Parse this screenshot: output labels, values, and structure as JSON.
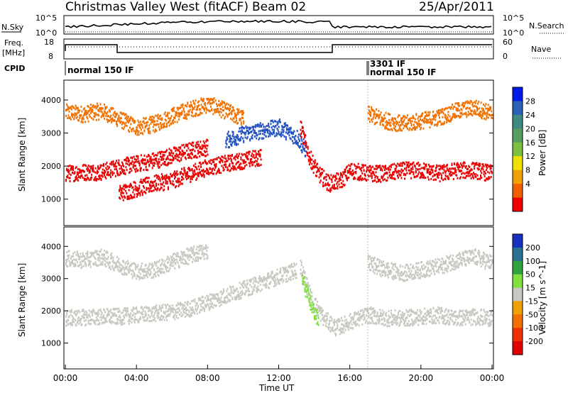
{
  "header": {
    "station": "Christmas Valley West (fitACF)",
    "beam": "Beam 02",
    "date": "25/Apr/2011"
  },
  "nsky_panel": {
    "left_label": "N.Sky",
    "right_label": "N.Search",
    "left_ticks": [
      "10^5",
      "10^0"
    ],
    "right_ticks": [
      "10^5",
      "10^0"
    ]
  },
  "freq_panel": {
    "left_label_1": "Freq.",
    "left_label_2": "[MHz]",
    "right_label": "Nave",
    "left_ticks": [
      "18",
      "8"
    ],
    "right_ticks": [
      "60",
      "0"
    ]
  },
  "cpid_panel": {
    "label": "CPID",
    "segments": [
      "normal 150 IF",
      "3301 IF",
      "normal 150 IF"
    ]
  },
  "chart_data": [
    {
      "type": "heatmap",
      "name": "power",
      "xlabel": "",
      "ylabel": "Slant Range [km]",
      "xlim": [
        0,
        24
      ],
      "ylim": [
        200,
        4600
      ],
      "y_ticks": [
        1000,
        2000,
        3000,
        4000
      ],
      "colorbar_label": "Power [dB]",
      "colorbar_ticks": [
        4,
        8,
        12,
        16,
        20,
        24,
        28
      ],
      "colorbar_colors": [
        "#0018e8",
        "#2a60b8",
        "#3f8a80",
        "#55a060",
        "#80c040",
        "#f0e000",
        "#f0a000",
        "#f06000",
        "#f00000"
      ],
      "bands": [
        {
          "t": [
            0,
            1,
            2,
            3,
            4,
            5,
            6,
            7,
            8,
            9,
            10
          ],
          "r": [
            3650,
            3600,
            3700,
            3450,
            3200,
            3300,
            3550,
            3750,
            3900,
            3700,
            3450
          ],
          "color": "#f07000"
        },
        {
          "t": [
            0,
            1,
            2,
            3,
            4,
            5,
            6,
            7,
            8
          ],
          "r": [
            1800,
            1850,
            1850,
            2000,
            2100,
            2200,
            2350,
            2500,
            2600
          ],
          "color": "#e80000"
        },
        {
          "t": [
            3,
            4,
            5,
            6,
            7,
            8,
            9,
            10,
            11
          ],
          "r": [
            1200,
            1350,
            1500,
            1600,
            1800,
            2000,
            2100,
            2200,
            2300
          ],
          "color": "#e80000"
        },
        {
          "t": [
            9,
            10,
            11,
            12,
            13,
            13.5
          ],
          "r": [
            2800,
            3000,
            3100,
            3200,
            2900,
            2500
          ],
          "color": "#2050c0"
        },
        {
          "t": [
            13.2,
            13.7,
            14.2,
            14.8,
            15.5,
            16,
            17,
            18,
            19,
            20,
            21,
            22,
            23,
            24
          ],
          "r": [
            3200,
            2300,
            1800,
            1500,
            1600,
            1900,
            1800,
            1800,
            1900,
            1900,
            1800,
            1900,
            1900,
            1800
          ],
          "color": "#e80000"
        },
        {
          "t": [
            17,
            18,
            19,
            20,
            21,
            22,
            23,
            24
          ],
          "r": [
            3600,
            3400,
            3300,
            3400,
            3500,
            3700,
            3800,
            3600
          ],
          "color": "#f07000"
        }
      ]
    },
    {
      "type": "heatmap",
      "name": "velocity",
      "xlabel": "Time UT",
      "ylabel": "Slant Range [km]",
      "xlim": [
        0,
        24
      ],
      "ylim": [
        200,
        4600
      ],
      "x_ticks": [
        "00:00",
        "04:00",
        "08:00",
        "12:00",
        "16:00",
        "20:00",
        "00:00"
      ],
      "y_ticks": [
        1000,
        2000,
        3000,
        4000
      ],
      "colorbar_label": "Velocity [m s^-1]",
      "colorbar_ticks": [
        200,
        100,
        50,
        15,
        -15,
        -50,
        -100,
        -200
      ],
      "colorbar_colors": [
        "#1830c0",
        "#2a7090",
        "#30a040",
        "#80e040",
        "#c8c8c0",
        "#f0a000",
        "#f07000",
        "#f03000",
        "#e00000"
      ],
      "bands": [
        {
          "t": [
            0,
            2,
            3,
            4,
            5,
            6,
            7,
            8,
            9,
            10,
            11,
            12,
            13
          ],
          "r": [
            1800,
            1850,
            1850,
            1900,
            1950,
            2000,
            2100,
            2300,
            2500,
            2700,
            2900,
            3100,
            3300
          ],
          "color": "#c8c8c0"
        },
        {
          "t": [
            0,
            1,
            2,
            3,
            4,
            5,
            6,
            7,
            8
          ],
          "r": [
            3650,
            3600,
            3700,
            3450,
            3250,
            3300,
            3550,
            3750,
            3900
          ],
          "color": "#c8c8c0"
        },
        {
          "t": [
            13.2,
            13.8,
            14.5,
            15.2,
            16,
            17,
            18,
            19,
            20,
            21,
            22,
            23,
            24
          ],
          "r": [
            3400,
            2400,
            1800,
            1500,
            1700,
            1900,
            1800,
            1800,
            1850,
            1900,
            1800,
            1850,
            1800
          ],
          "color": "#c8c8c0"
        },
        {
          "t": [
            17,
            18,
            19,
            20,
            21,
            22,
            23,
            24
          ],
          "r": [
            3500,
            3300,
            3200,
            3300,
            3400,
            3600,
            3700,
            3500
          ],
          "color": "#c8c8c0"
        },
        {
          "t": [
            13.3,
            13.8,
            14.2
          ],
          "r": [
            3000,
            2200,
            1700
          ],
          "color": "#80e040"
        }
      ]
    }
  ]
}
